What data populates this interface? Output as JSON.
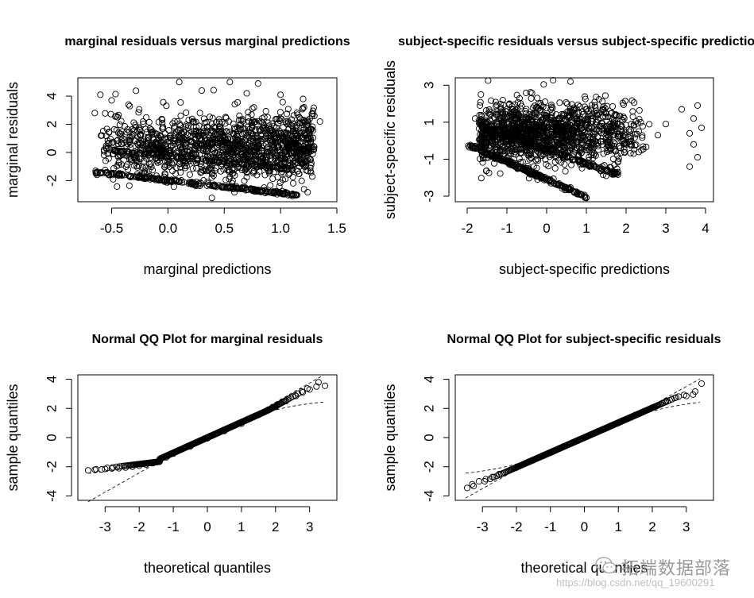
{
  "chart_data": [
    {
      "type": "scatter",
      "title": "marginal residuals versus marginal predictions",
      "xlabel": "marginal predictions",
      "ylabel": "marginal residuals",
      "xlim": [
        -0.8,
        1.5
      ],
      "ylim": [
        -3.5,
        5.3
      ],
      "xticks": [
        -0.5,
        0.0,
        0.5,
        1.0,
        1.5
      ],
      "xtick_labels": [
        "-0.5",
        "0.0",
        "0.5",
        "1.0",
        "1.5"
      ],
      "yticks": [
        -2,
        0,
        2,
        4
      ],
      "ytick_labels": [
        "-2",
        "0",
        "2",
        "4"
      ],
      "grid": false,
      "point_style": "open-circle",
      "series": [
        {
          "values_description": "lower band of residuals",
          "x_range": [
            -0.65,
            1.15
          ],
          "y_range": [
            -1.4,
            -3.0
          ]
        },
        {
          "values_description": "main cloud",
          "x_range": [
            -0.7,
            1.35
          ],
          "y_range": [
            -2.0,
            5.0
          ]
        }
      ],
      "points": [
        [
          0.1,
          5.0
        ],
        [
          0.55,
          5.0
        ],
        [
          0.8,
          4.9
        ],
        [
          -0.6,
          4.1
        ],
        [
          -0.5,
          3.7
        ],
        [
          -0.35,
          3.4
        ],
        [
          0.3,
          4.4
        ],
        [
          0.7,
          4.2
        ],
        [
          1.0,
          4.1
        ],
        [
          1.2,
          3.8
        ],
        [
          -0.65,
          2.8
        ],
        [
          1.3,
          2.6
        ],
        [
          1.35,
          2.2
        ],
        [
          1.1,
          1.9
        ]
      ]
    },
    {
      "type": "scatter",
      "title": "subject-specific residuals versus subject-specific predictions",
      "xlabel": "subject-specific predictions",
      "ylabel": "subject-specific residuals",
      "xlim": [
        -2.3,
        4.2
      ],
      "ylim": [
        -3.3,
        3.4
      ],
      "xticks": [
        -2,
        -1,
        0,
        1,
        2,
        3,
        4
      ],
      "xtick_labels": [
        "-2",
        "-1",
        "0",
        "1",
        "2",
        "3",
        "4"
      ],
      "yticks": [
        -3,
        -1,
        1,
        3
      ],
      "ytick_labels": [
        "-3",
        "-1",
        "1",
        "3"
      ],
      "grid": false,
      "point_style": "open-circle",
      "series": [
        {
          "values_description": "lower diagonal band",
          "x_range": [
            -2.0,
            1.0
          ],
          "y_range": [
            -0.2,
            -3.0
          ]
        },
        {
          "values_description": "main cloud",
          "x_range": [
            -2.0,
            4.0
          ],
          "y_range": [
            -2.0,
            3.2
          ]
        }
      ],
      "points": [
        [
          0.6,
          3.2
        ],
        [
          3.8,
          1.9
        ],
        [
          3.4,
          1.7
        ],
        [
          3.7,
          1.2
        ],
        [
          3.9,
          0.7
        ],
        [
          3.6,
          0.4
        ],
        [
          3.7,
          -0.2
        ],
        [
          3.8,
          -0.9
        ],
        [
          3.6,
          -1.4
        ],
        [
          3.0,
          0.9
        ],
        [
          2.8,
          0.3
        ],
        [
          1.5,
          -1.9
        ],
        [
          1.8,
          -1.7
        ],
        [
          -1.8,
          1.2
        ],
        [
          -1.6,
          0.9
        ],
        [
          -1.4,
          0.6
        ],
        [
          1.0,
          -3.1
        ]
      ]
    },
    {
      "type": "scatter",
      "title": "Normal QQ Plot for marginal residuals",
      "xlabel": "theoretical quantiles",
      "ylabel": "sample quantiles",
      "xlim": [
        -3.8,
        3.8
      ],
      "ylim": [
        -4.3,
        4.3
      ],
      "xticks": [
        -3,
        -2,
        -1,
        0,
        1,
        2,
        3
      ],
      "xtick_labels": [
        "-3",
        "-2",
        "-1",
        "0",
        "1",
        "2",
        "3"
      ],
      "yticks": [
        -4,
        -2,
        0,
        2,
        4
      ],
      "ytick_labels": [
        "-4",
        "-2",
        "0",
        "2",
        "4"
      ],
      "grid": false,
      "point_style": "open-circle",
      "reference_lines": "dashed",
      "points": [
        [
          -3.5,
          -2.25
        ],
        [
          -3.3,
          -2.2
        ],
        [
          -3.1,
          -2.18
        ],
        [
          -3.0,
          -2.15
        ],
        [
          -2.8,
          -2.12
        ],
        [
          -2.6,
          -2.1
        ],
        [
          -2.4,
          -2.05
        ],
        [
          -2.2,
          -2.0
        ],
        [
          -2.0,
          -1.93
        ],
        [
          -1.8,
          -1.85
        ],
        [
          -1.6,
          -1.75
        ],
        [
          -1.4,
          -1.6
        ],
        [
          -1.2,
          -1.35
        ],
        [
          -1.0,
          -1.1
        ],
        [
          -0.5,
          -0.6
        ],
        [
          0.0,
          -0.05
        ],
        [
          0.5,
          0.45
        ],
        [
          1.0,
          0.95
        ],
        [
          1.5,
          1.55
        ],
        [
          2.0,
          2.1
        ],
        [
          2.3,
          2.5
        ],
        [
          2.6,
          2.85
        ],
        [
          2.8,
          3.1
        ],
        [
          3.0,
          3.3
        ],
        [
          3.2,
          3.5
        ],
        [
          3.45,
          3.55
        ]
      ]
    },
    {
      "type": "scatter",
      "title": "Normal QQ Plot for subject-specific residuals",
      "xlabel": "theoretical quantiles",
      "ylabel": "sample quantiles",
      "xlim": [
        -3.8,
        3.8
      ],
      "ylim": [
        -4.3,
        4.3
      ],
      "xticks": [
        -3,
        -2,
        -1,
        0,
        1,
        2,
        3
      ],
      "xtick_labels": [
        "-3",
        "-2",
        "-1",
        "0",
        "1",
        "2",
        "3"
      ],
      "yticks": [
        -4,
        -2,
        0,
        2,
        4
      ],
      "ytick_labels": [
        "-4",
        "-2",
        "0",
        "2",
        "4"
      ],
      "grid": false,
      "point_style": "open-circle",
      "reference_lines": "dashed",
      "points": [
        [
          -3.45,
          -3.45
        ],
        [
          -3.3,
          -3.2
        ],
        [
          -3.1,
          -3.0
        ],
        [
          -2.9,
          -2.85
        ],
        [
          -2.7,
          -2.7
        ],
        [
          -2.5,
          -2.5
        ],
        [
          -2.2,
          -2.25
        ],
        [
          -2.0,
          -2.05
        ],
        [
          -1.5,
          -1.55
        ],
        [
          -1.0,
          -1.05
        ],
        [
          -0.5,
          -0.5
        ],
        [
          0.0,
          0.0
        ],
        [
          0.5,
          0.5
        ],
        [
          1.0,
          1.0
        ],
        [
          1.5,
          1.55
        ],
        [
          2.0,
          2.05
        ],
        [
          2.4,
          2.5
        ],
        [
          2.7,
          2.75
        ],
        [
          3.0,
          2.85
        ],
        [
          3.2,
          2.95
        ],
        [
          3.45,
          3.7
        ]
      ]
    }
  ],
  "watermark": {
    "brand": "拓端数据部落",
    "url": "https://blog.csdn.net/qq_19600291"
  }
}
